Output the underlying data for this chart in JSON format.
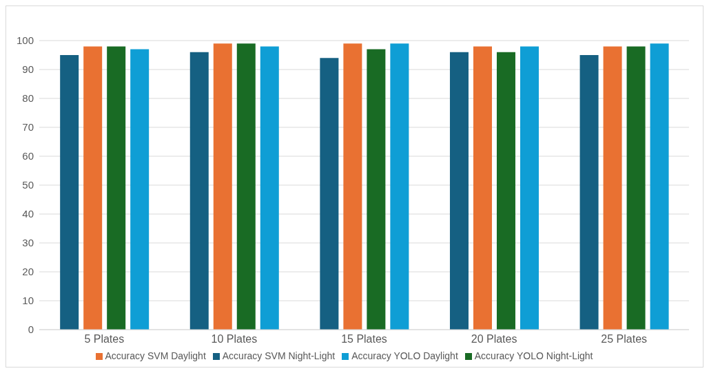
{
  "chart_data": {
    "type": "bar",
    "categories": [
      "5 Plates",
      "10 Plates",
      "15 Plates",
      "20 Plates",
      "25 Plates"
    ],
    "series": [
      {
        "name": "Accuracy SVM Night-Light",
        "color": "#156082",
        "values": [
          95,
          96,
          94,
          96,
          95
        ]
      },
      {
        "name": "Accuracy SVM Daylight",
        "color": "#e97132",
        "values": [
          98,
          99,
          99,
          98,
          98
        ]
      },
      {
        "name": "Accuracy YOLO Night-Light",
        "color": "#196b24",
        "values": [
          98,
          99,
          97,
          96,
          98
        ]
      },
      {
        "name": "Accuracy YOLO Daylight",
        "color": "#0f9ed5",
        "values": [
          97,
          98,
          99,
          98,
          99
        ]
      }
    ],
    "ylim": [
      0,
      100
    ],
    "yticks": [
      0,
      10,
      20,
      30,
      40,
      50,
      60,
      70,
      80,
      90,
      100
    ],
    "grid": "y",
    "legend": "bottom"
  }
}
